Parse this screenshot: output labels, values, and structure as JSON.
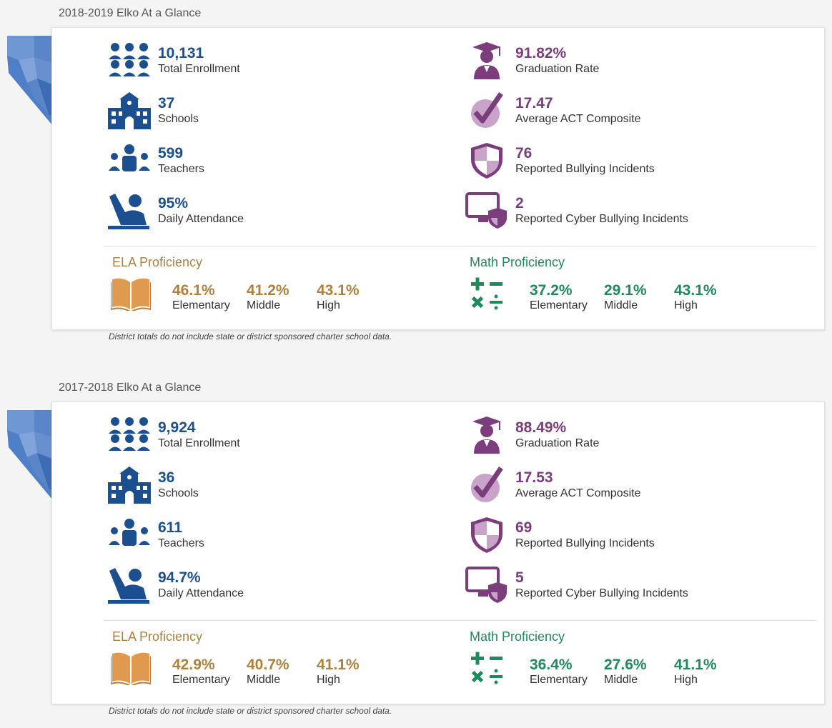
{
  "colors": {
    "blue": "#1b4f8f",
    "purple": "#7b3d7c",
    "ela": "#b0803c",
    "math": "#1f8a5c",
    "map": "#4f7fc6"
  },
  "sections": [
    {
      "title": "2018-2019 Elko At a Glance",
      "enrollment": {
        "value": "10,131",
        "label": "Total Enrollment"
      },
      "schools": {
        "value": "37",
        "label": "Schools"
      },
      "teachers": {
        "value": "599",
        "label": "Teachers"
      },
      "attendance": {
        "value": "95%",
        "label": "Daily Attendance"
      },
      "graduation": {
        "value": "91.82%",
        "label": "Graduation Rate"
      },
      "act": {
        "value": "17.47",
        "label": "Average ACT Composite"
      },
      "bullying": {
        "value": "76",
        "label": "Reported Bullying Incidents"
      },
      "cyber": {
        "value": "2",
        "label": "Reported Cyber Bullying Incidents"
      },
      "ela": {
        "title": "ELA Proficiency",
        "elementary": "46.1%",
        "middle": "41.2%",
        "high": "43.1%"
      },
      "math": {
        "title": "Math Proficiency",
        "elementary": "37.2%",
        "middle": "29.1%",
        "high": "43.1%"
      },
      "level_labels": {
        "elementary": "Elementary",
        "middle": "Middle",
        "high": "High"
      },
      "note": "District totals do not include state or district sponsored charter school data."
    },
    {
      "title": "2017-2018 Elko At a Glance",
      "enrollment": {
        "value": "9,924",
        "label": "Total Enrollment"
      },
      "schools": {
        "value": "36",
        "label": "Schools"
      },
      "teachers": {
        "value": "611",
        "label": "Teachers"
      },
      "attendance": {
        "value": "94.7%",
        "label": "Daily Attendance"
      },
      "graduation": {
        "value": "88.49%",
        "label": "Graduation Rate"
      },
      "act": {
        "value": "17.53",
        "label": "Average ACT Composite"
      },
      "bullying": {
        "value": "69",
        "label": "Reported Bullying Incidents"
      },
      "cyber": {
        "value": "5",
        "label": "Reported Cyber Bullying Incidents"
      },
      "ela": {
        "title": "ELA Proficiency",
        "elementary": "42.9%",
        "middle": "40.7%",
        "high": "41.1%"
      },
      "math": {
        "title": "Math Proficiency",
        "elementary": "36.4%",
        "middle": "27.6%",
        "high": "41.1%"
      },
      "level_labels": {
        "elementary": "Elementary",
        "middle": "Middle",
        "high": "High"
      },
      "note": "District totals do not include state or district sponsored charter school data."
    }
  ]
}
